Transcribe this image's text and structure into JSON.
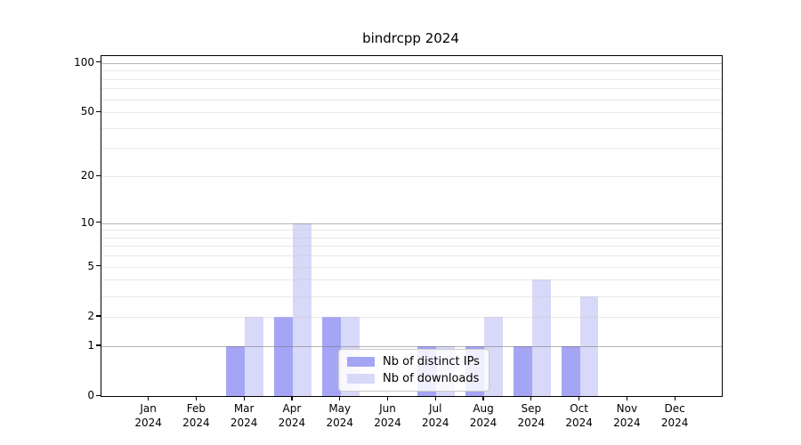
{
  "chart_data": {
    "type": "bar",
    "title": "bindrcpp 2024",
    "categories": [
      "Jan",
      "Feb",
      "Mar",
      "Apr",
      "May",
      "Jun",
      "Jul",
      "Aug",
      "Sep",
      "Oct",
      "Nov",
      "Dec"
    ],
    "x_tick_year": "2024",
    "series": [
      {
        "name": "Nb of distinct IPs",
        "color": "#a5a5f5",
        "values": [
          0,
          0,
          1,
          2,
          2,
          0,
          1,
          1,
          1,
          1,
          0,
          0
        ]
      },
      {
        "name": "Nb of downloads",
        "color": "#d8d8f8",
        "values": [
          0,
          0,
          2,
          10,
          2,
          0,
          1,
          2,
          4,
          3,
          0,
          0
        ]
      }
    ],
    "yscale": "log1p",
    "y_ticks": [
      0,
      1,
      2,
      5,
      10,
      20,
      50,
      100
    ],
    "ylim": [
      0,
      110
    ],
    "grid": "both",
    "legend_position": "lower center",
    "colors": {
      "major_grid": "#b4b4b4",
      "minor_grid": "#ebebeb",
      "spine": "#000000",
      "text": "#000000",
      "background": "#ffffff"
    }
  }
}
